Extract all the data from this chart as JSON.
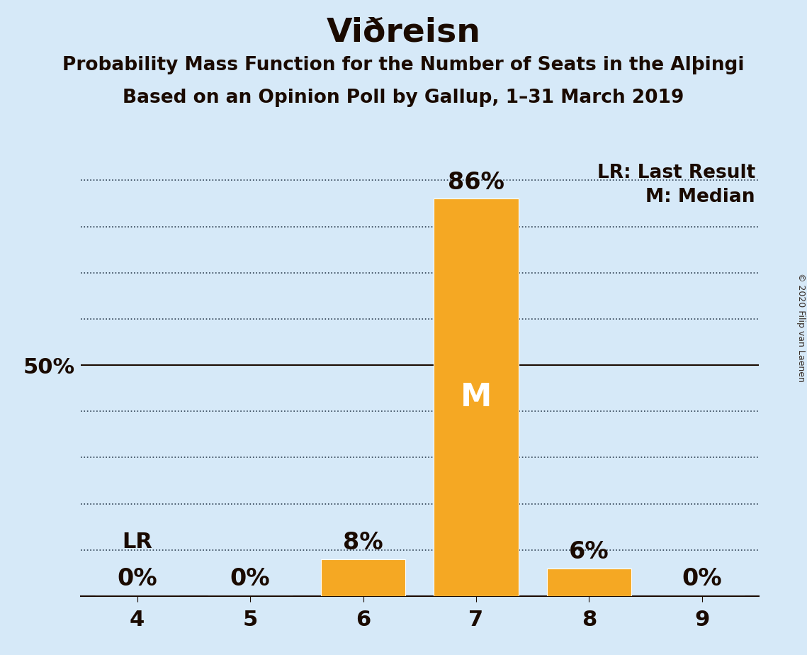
{
  "title": "Viðreisn",
  "subtitle1": "Probability Mass Function for the Number of Seats in the Alþingi",
  "subtitle2": "Based on an Opinion Poll by Gallup, 1–31 March 2019",
  "categories": [
    4,
    5,
    6,
    7,
    8,
    9
  ],
  "values": [
    0,
    0,
    8,
    86,
    6,
    0
  ],
  "bar_color": "#F5A823",
  "background_color": "#D6E9F8",
  "text_color": "#1A0A00",
  "median_seat": 7,
  "last_result_seat": 4,
  "legend_lr": "LR: Last Result",
  "legend_m": "M: Median",
  "median_label": "M",
  "lr_label": "LR",
  "copyright": "© 2020 Filip van Laenen",
  "ylim": [
    0,
    95
  ],
  "ytick_dotted": [
    10,
    20,
    30,
    40,
    60,
    70,
    80,
    90
  ],
  "ytick_solid": [
    50
  ],
  "bar_width": 0.75,
  "title_fontsize": 34,
  "subtitle_fontsize": 19,
  "tick_fontsize": 22,
  "legend_fontsize": 19,
  "annotation_fontsize": 24,
  "median_fontsize": 32,
  "lr_fontsize": 22,
  "copyright_fontsize": 9,
  "grid_color": "#2C3E50",
  "fifty_line_color": "#1A0A00"
}
